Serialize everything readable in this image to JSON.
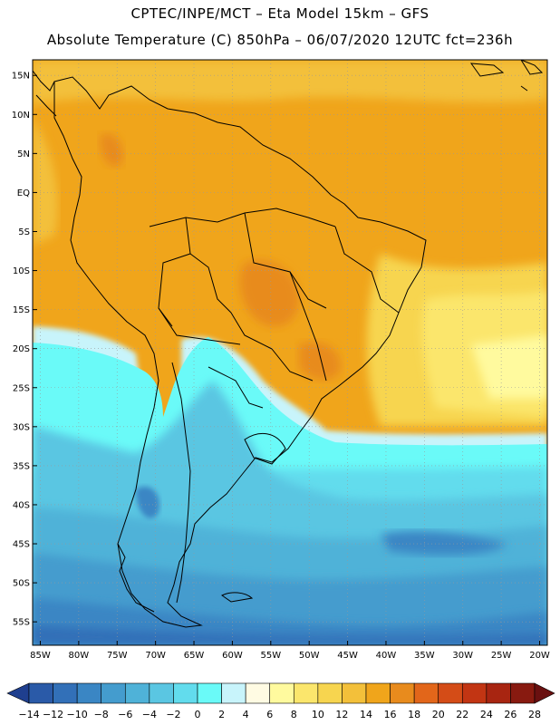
{
  "header": {
    "line1": "CPTEC/INPE/MCT –  Eta Model 15km – GFS",
    "line2": "Absolute Temperature (C) 850hPa – 06/07/2020 12UTC fct=236h"
  },
  "map": {
    "lon_range": [
      -86,
      -19
    ],
    "lat_range": [
      -58,
      17
    ],
    "lat_ticks": [
      {
        "label": "15N",
        "lat": 15
      },
      {
        "label": "10N",
        "lat": 10
      },
      {
        "label": "5N",
        "lat": 5
      },
      {
        "label": "EQ",
        "lat": 0
      },
      {
        "label": "5S",
        "lat": -5
      },
      {
        "label": "10S",
        "lat": -10
      },
      {
        "label": "15S",
        "lat": -15
      },
      {
        "label": "20S",
        "lat": -20
      },
      {
        "label": "25S",
        "lat": -25
      },
      {
        "label": "30S",
        "lat": -30
      },
      {
        "label": "35S",
        "lat": -35
      },
      {
        "label": "40S",
        "lat": -40
      },
      {
        "label": "45S",
        "lat": -45
      },
      {
        "label": "50S",
        "lat": -50
      },
      {
        "label": "55S",
        "lat": -55
      }
    ],
    "lon_ticks": [
      {
        "label": "85W",
        "lon": -85
      },
      {
        "label": "80W",
        "lon": -80
      },
      {
        "label": "75W",
        "lon": -75
      },
      {
        "label": "70W",
        "lon": -70
      },
      {
        "label": "65W",
        "lon": -65
      },
      {
        "label": "60W",
        "lon": -60
      },
      {
        "label": "55W",
        "lon": -55
      },
      {
        "label": "50W",
        "lon": -50
      },
      {
        "label": "45W",
        "lon": -45
      },
      {
        "label": "40W",
        "lon": -40
      },
      {
        "label": "35W",
        "lon": -35
      },
      {
        "label": "30W",
        "lon": -30
      },
      {
        "label": "25W",
        "lon": -25
      },
      {
        "label": "20W",
        "lon": -20
      }
    ]
  },
  "legend": {
    "colors": [
      "#1f3f8f",
      "#2a5aa8",
      "#3270b8",
      "#3a86c4",
      "#449cce",
      "#4fb2d8",
      "#5ac6e2",
      "#62dced",
      "#6afaf8",
      "#c8f4fb",
      "#fffbe3",
      "#fffa9e",
      "#fbe66c",
      "#f7d54f",
      "#f3c03a",
      "#f0a51b",
      "#e88b1d",
      "#e2661a",
      "#d44c17",
      "#c23513",
      "#a82511",
      "#881a10",
      "#6a1010"
    ],
    "labels": [
      "-14",
      "-12",
      "-10",
      "-8",
      "-6",
      "-4",
      "-2",
      "0",
      "2",
      "4",
      "6",
      "8",
      "10",
      "12",
      "14",
      "16",
      "18",
      "20",
      "22",
      "24",
      "26",
      "28"
    ]
  }
}
